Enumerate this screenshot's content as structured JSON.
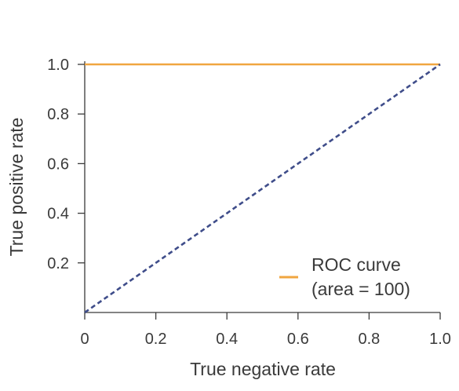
{
  "chart_data": {
    "type": "line",
    "title": "",
    "xlabel": "True negative rate",
    "ylabel": "True positive rate",
    "xlim": [
      0,
      1
    ],
    "ylim": [
      0,
      1
    ],
    "x_ticks": [
      {
        "value": 0,
        "label": "0"
      },
      {
        "value": 0.2,
        "label": "0.2"
      },
      {
        "value": 0.4,
        "label": "0.4"
      },
      {
        "value": 0.6,
        "label": "0.6"
      },
      {
        "value": 0.8,
        "label": "0.8"
      },
      {
        "value": 1.0,
        "label": "1.0"
      }
    ],
    "y_ticks": [
      {
        "value": 0.2,
        "label": "0.2"
      },
      {
        "value": 0.4,
        "label": "0.4"
      },
      {
        "value": 0.6,
        "label": "0.6"
      },
      {
        "value": 0.8,
        "label": "0.8"
      },
      {
        "value": 1.0,
        "label": "1.0"
      }
    ],
    "grid": false,
    "legend_position": "bottom-right",
    "series": [
      {
        "name": "ROC curve (area = 100)",
        "legend_lines": [
          "ROC curve",
          "(area = 100)"
        ],
        "style": "solid",
        "color": "#f0a640",
        "x": [
          0,
          1
        ],
        "y": [
          1,
          1
        ]
      },
      {
        "style": "dashed",
        "color": "#3f4d8a",
        "x": [
          0,
          1
        ],
        "y": [
          0,
          1
        ]
      }
    ]
  },
  "colors": {
    "axis": "#3a3a3a",
    "text": "#3a3a3a",
    "roc": "#f0a640",
    "diagonal": "#3f4d8a"
  }
}
